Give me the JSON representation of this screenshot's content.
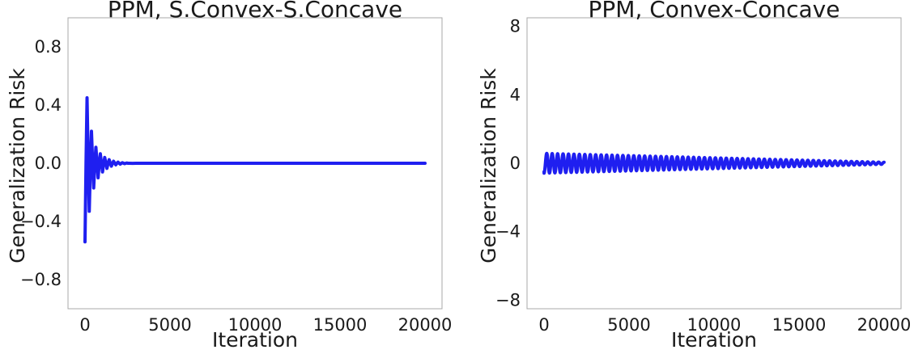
{
  "chart_data": [
    {
      "type": "line",
      "title": "PPM, S.Convex-S.Concave",
      "xlabel": "Iteration",
      "ylabel": "Generalization Risk",
      "xlim": [
        -1000,
        21000
      ],
      "ylim": [
        -1.0,
        1.0
      ],
      "xticks": [
        0,
        5000,
        10000,
        15000,
        20000
      ],
      "yticks": [
        0.8,
        0.4,
        0.0,
        -0.4,
        -0.8
      ],
      "xtick_labels": [
        "0",
        "5000",
        "10000",
        "15000",
        "20000"
      ],
      "ytick_labels": [
        "0.8",
        "0.4",
        "0.0",
        "−0.4",
        "−0.8"
      ],
      "grid": false,
      "series": [
        {
          "color": "#1f1ff0",
          "x": [
            0,
            60,
            120,
            190,
            250,
            320,
            380,
            450,
            510,
            580,
            640,
            710,
            770,
            840,
            900,
            970,
            1030,
            1100,
            1160,
            1230,
            1290,
            1360,
            1420,
            1490,
            1550,
            1620,
            1680,
            1750,
            1810,
            1880,
            1940,
            2010,
            2070,
            2140,
            2200,
            2270,
            2330,
            2400,
            2460,
            2530,
            2600,
            2800,
            3000,
            4000,
            6000,
            8000,
            10000,
            12000,
            14000,
            16000,
            18000,
            20000
          ],
          "y": [
            -0.54,
            0.0,
            0.45,
            0.0,
            -0.33,
            0.0,
            0.22,
            0.0,
            -0.17,
            0.0,
            0.11,
            0.0,
            -0.1,
            0.0,
            0.065,
            0.0,
            -0.06,
            0.0,
            0.04,
            0.0,
            -0.035,
            0.0,
            0.025,
            0.0,
            -0.02,
            0.0,
            0.014,
            0.0,
            -0.011,
            0.0,
            0.008,
            0.0,
            -0.006,
            0.0,
            0.004,
            0.0,
            -0.003,
            0.0,
            0.002,
            0.0,
            0.0,
            -0.001,
            0.0,
            0.0,
            0.0,
            0.0,
            0.0,
            0.0,
            0.0,
            0.0,
            0.0,
            0.0
          ]
        }
      ]
    },
    {
      "type": "line",
      "title": "PPM, Convex-Concave",
      "xlabel": "Iteration",
      "ylabel": "Generalization Risk",
      "xlim": [
        -1000,
        21000
      ],
      "ylim": [
        -8.5,
        8.5
      ],
      "xticks": [
        0,
        5000,
        10000,
        15000,
        20000
      ],
      "yticks": [
        8,
        4,
        0,
        -4,
        -8
      ],
      "xtick_labels": [
        "0",
        "5000",
        "10000",
        "15000",
        "20000"
      ],
      "ytick_labels": [
        "8",
        "4",
        "0",
        "−4",
        "−8"
      ],
      "grid": false,
      "series": [
        {
          "color": "#1f1ff0",
          "oscillation": {
            "period": 320,
            "amplitude_start": 0.58,
            "amplitude_end": 0.06,
            "start_value": -0.5,
            "offset": 0.0,
            "x_start": 0,
            "x_end": 20000
          }
        }
      ]
    }
  ]
}
